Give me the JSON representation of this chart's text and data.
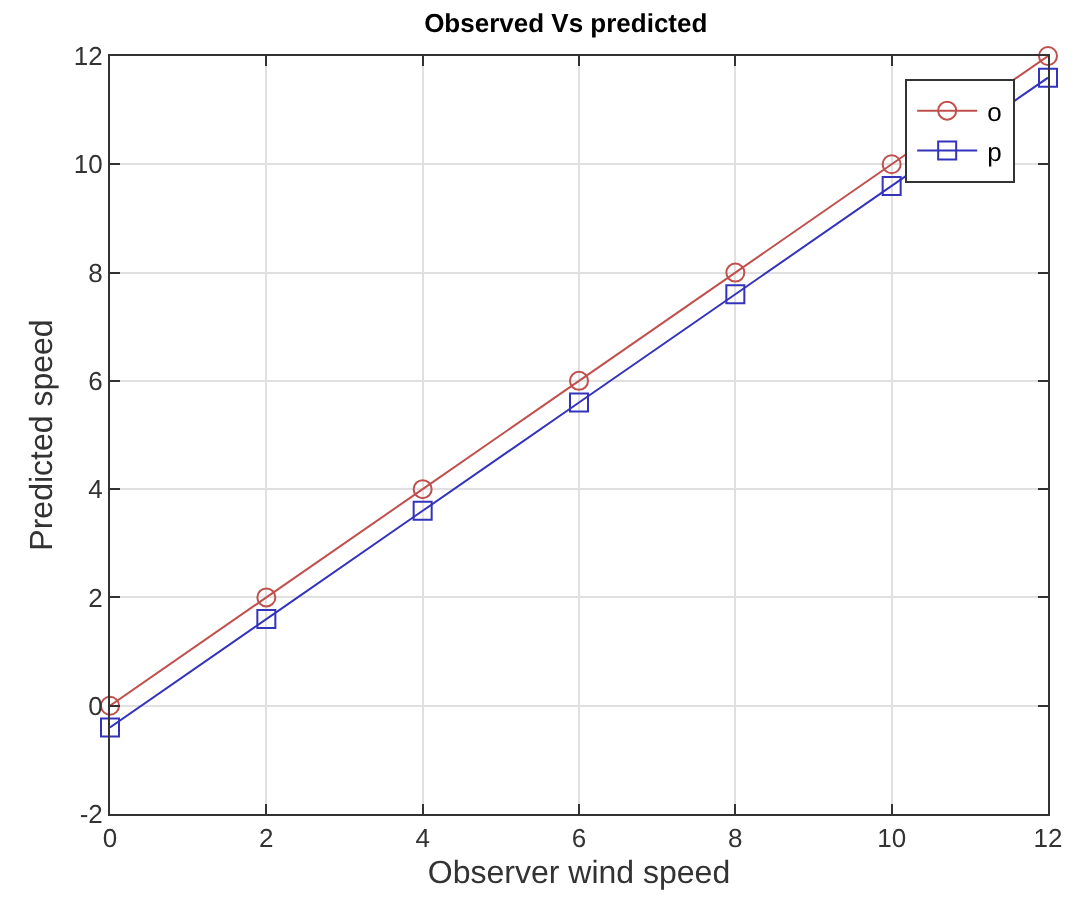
{
  "chart_data": {
    "type": "line",
    "title": "Observed Vs predicted",
    "xlabel": "Observer wind speed",
    "ylabel": "Predicted speed",
    "x": [
      0,
      2,
      4,
      6,
      8,
      10,
      12
    ],
    "series": [
      {
        "name": "o",
        "color": "#c0504d",
        "marker": "circle",
        "values": [
          0,
          2,
          4,
          6,
          8,
          10,
          12
        ]
      },
      {
        "name": "p",
        "color": "#3333bb",
        "marker": "square",
        "values": [
          -0.4,
          1.6,
          3.6,
          5.6,
          7.6,
          9.6,
          11.6
        ]
      }
    ],
    "xlim": [
      0,
      12
    ],
    "xticks": [
      0,
      2,
      4,
      6,
      8,
      10,
      12
    ],
    "ylim": [
      -2,
      12
    ],
    "yticks": [
      -2,
      0,
      2,
      4,
      6,
      8,
      10,
      12
    ],
    "grid": true,
    "legend": "top right",
    "line_style": "solid"
  }
}
